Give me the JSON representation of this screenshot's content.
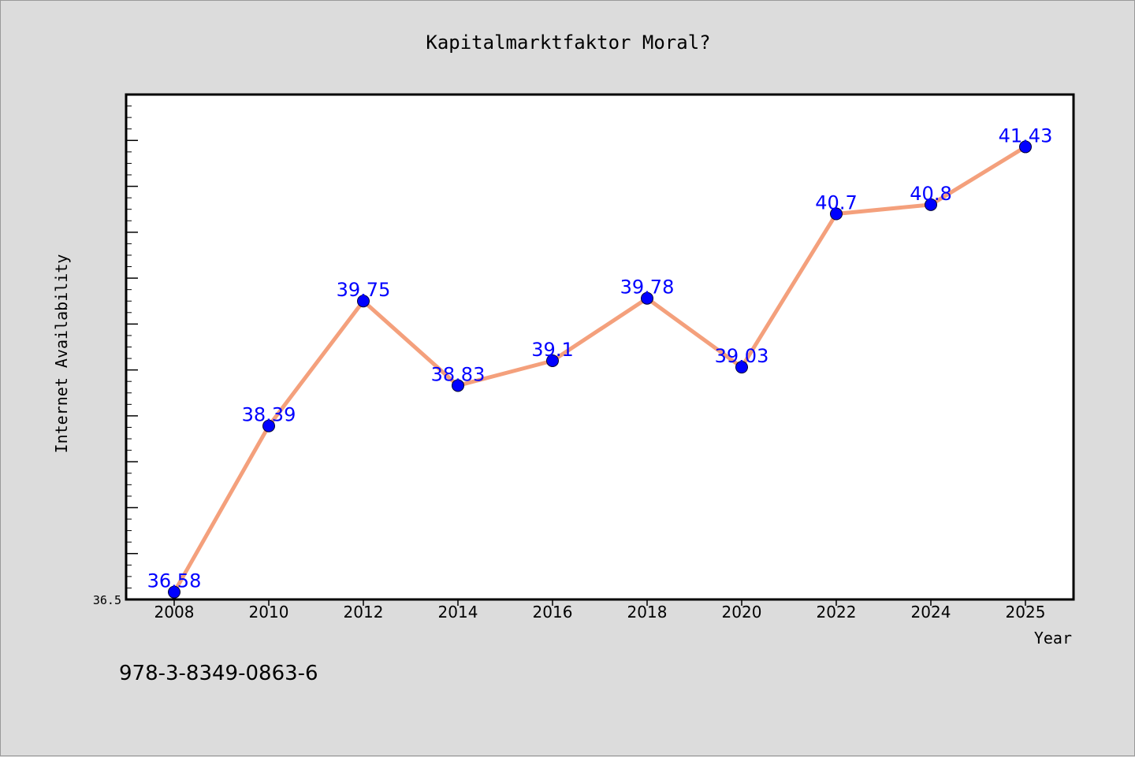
{
  "chart_data": {
    "type": "line",
    "title": "Kapitalmarktfaktor Moral?",
    "xlabel": "Year",
    "ylabel": "Internet Availability",
    "categories": [
      "2008",
      "2010",
      "2012",
      "2014",
      "2016",
      "2018",
      "2020",
      "2022",
      "2024",
      "2025"
    ],
    "series": [
      {
        "values": [
          36.58,
          38.39,
          39.75,
          38.83,
          39.1,
          39.78,
          39.03,
          40.7,
          40.8,
          41.43
        ],
        "data_labels": [
          "36.58",
          "38.39",
          "39.75",
          "38.83",
          "39.1",
          "39.78",
          "39.03",
          "40.7",
          "40.8",
          "41.43"
        ]
      }
    ],
    "ytick_labels": [
      "36.5"
    ],
    "ylim": [
      36.5,
      42.0
    ],
    "grid": false,
    "colors": {
      "line": "#f4a07c",
      "marker": "#0000ff",
      "data_label": "#0000ff",
      "background": "#dcdcdc",
      "plot_area": "#ffffff"
    }
  },
  "footer": {
    "isbn": "978-3-8349-0863-6"
  }
}
